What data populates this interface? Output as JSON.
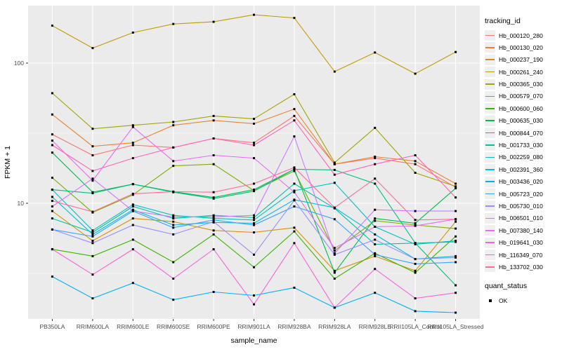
{
  "chart_data": {
    "type": "line",
    "xlabel": "sample_name",
    "ylabel": "FPKM + 1",
    "y_scale": "log10",
    "grid": true,
    "legend_position": "right",
    "panel_background": "#ebebeb",
    "gridline_color": "#ffffff",
    "point_color": "#000000",
    "y_ticks": [
      100,
      10
    ],
    "y_tick_labels": [
      "100",
      "10"
    ],
    "y_minor_ticks": [
      31.62,
      3.162
    ],
    "ylim": [
      1.5,
      270
    ],
    "legend_titles": {
      "series": "tracking_id",
      "points": "quant_status"
    },
    "quant_status_items": [
      {
        "label": "OK"
      }
    ],
    "categories": [
      "PB350LA",
      "RRIM600LA",
      "RRIM600LE",
      "RRIM600SE",
      "RRIM600PE",
      "RRIM901LA",
      "RRIM928BA",
      "RRIM928LA",
      "RRIM928LE",
      "RRII105LA_Control",
      "RRII105LA_Stressed"
    ],
    "series": [
      {
        "name": "Hb_000120_280",
        "color": "#F8766D",
        "values": [
          31,
          22,
          26,
          25,
          29,
          27,
          42,
          19,
          21,
          19,
          13
        ]
      },
      {
        "name": "Hb_000130_020",
        "color": "#EA8331",
        "values": [
          43,
          25.5,
          27,
          36,
          39,
          37,
          47,
          19,
          21.5,
          20,
          13.8
        ]
      },
      {
        "name": "Hb_000237_190",
        "color": "#D89000",
        "values": [
          8.8,
          5.4,
          7.8,
          7.4,
          6.4,
          6.2,
          6.7,
          3.3,
          4.2,
          3.3,
          7.4
        ]
      },
      {
        "name": "Hb_000261_240",
        "color": "#C09B00",
        "values": [
          185,
          128,
          165,
          190,
          197,
          221,
          210,
          87,
          119,
          84,
          120
        ]
      },
      {
        "name": "Hb_000365_030",
        "color": "#A3A500",
        "values": [
          61,
          34,
          36,
          38,
          42,
          40,
          60,
          19.5,
          34.5,
          16.5,
          13.2
        ]
      },
      {
        "name": "Hb_000579_070",
        "color": "#7CAE00",
        "values": [
          15.2,
          8.6,
          11.5,
          18.5,
          19,
          12.3,
          17,
          4.6,
          7.5,
          7,
          6.6
        ]
      },
      {
        "name": "Hb_000600_060",
        "color": "#39B600",
        "values": [
          4.7,
          4.2,
          5.5,
          3.8,
          6,
          3.5,
          6.3,
          2.9,
          4.4,
          3.2,
          5.8
        ]
      },
      {
        "name": "Hb_000635_030",
        "color": "#00BB4E",
        "values": [
          23,
          12,
          13.7,
          12.1,
          11,
          12.5,
          17.5,
          3.2,
          7.8,
          7.2,
          12.8
        ]
      },
      {
        "name": "Hb_000844_070",
        "color": "#00BF7D",
        "values": [
          12.5,
          11.8,
          13.7,
          12,
          10.8,
          12.2,
          17.5,
          17.3,
          13.8,
          5.2,
          2.6
        ]
      },
      {
        "name": "Hb_001733_030",
        "color": "#00C1A3",
        "values": [
          7.8,
          6.2,
          9.5,
          7.8,
          8.2,
          7.9,
          13.8,
          9.2,
          5.1,
          5.2,
          5.3
        ]
      },
      {
        "name": "Hb_002259_080",
        "color": "#00BFC4",
        "values": [
          12.5,
          6.4,
          9.8,
          8.2,
          7.8,
          7.6,
          12.3,
          14,
          6.8,
          5.1,
          5.4
        ]
      },
      {
        "name": "Hb_002391_360",
        "color": "#00BAE0",
        "values": [
          11.1,
          6,
          9,
          7,
          7.3,
          7.2,
          10.6,
          9.3,
          6,
          4,
          4.2
        ]
      },
      {
        "name": "Hb_003436_020",
        "color": "#00B0F6",
        "values": [
          3,
          2.1,
          2.7,
          2.05,
          2.33,
          2.2,
          2.5,
          1.8,
          2.3,
          1.7,
          1.66
        ]
      },
      {
        "name": "Hb_005723_020",
        "color": "#35A2FF",
        "values": [
          6.5,
          5.8,
          8.8,
          6.7,
          7.6,
          7,
          9.5,
          7.7,
          4.3,
          3.7,
          3.8
        ]
      },
      {
        "name": "Hb_005730_010",
        "color": "#9590FF",
        "values": [
          6.5,
          5.2,
          7,
          6,
          7.4,
          4.3,
          10.5,
          4.3,
          5.5,
          4,
          4.1
        ]
      },
      {
        "name": "Hb_006501_010",
        "color": "#C77CFF",
        "values": [
          9.5,
          15,
          8.8,
          8,
          8,
          8.2,
          30,
          4.4,
          9,
          8.8,
          8.8
        ]
      },
      {
        "name": "Hb_007380_140",
        "color": "#E76BF3",
        "values": [
          28,
          14.5,
          35,
          20,
          22,
          21,
          12,
          4.8,
          6.8,
          6.9,
          7.7
        ]
      },
      {
        "name": "Hb_019641_030",
        "color": "#FA62DB",
        "values": [
          4.7,
          3.1,
          4.7,
          2.9,
          4.7,
          1.9,
          5.2,
          1.8,
          3.4,
          2.1,
          2.3
        ]
      },
      {
        "name": "Hb_116349_070",
        "color": "#FF62BC",
        "values": [
          26,
          17,
          21,
          25,
          29,
          26,
          39,
          16,
          19,
          22,
          11
        ]
      },
      {
        "name": "Hb_133702_030",
        "color": "#FF6A98",
        "values": [
          10.4,
          8.7,
          11.7,
          12.1,
          12,
          13.8,
          18,
          9.3,
          15,
          7.6,
          7.7
        ]
      }
    ]
  }
}
